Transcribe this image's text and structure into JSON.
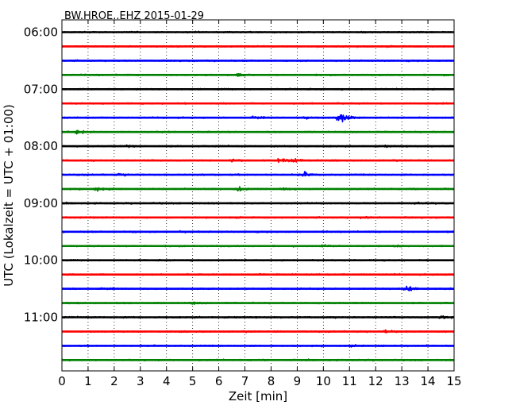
{
  "chart_data": {
    "type": "line",
    "title": "BW.HROE..EHZ 2015-01-29",
    "xlabel": "Zeit  [min]",
    "ylabel": "UTC (Lokalzeit = UTC + 01:00)",
    "xlim": [
      0,
      15
    ],
    "x_ticks": [
      "0",
      "1",
      "2",
      "3",
      "4",
      "5",
      "6",
      "7",
      "8",
      "9",
      "10",
      "11",
      "12",
      "13",
      "14",
      "15"
    ],
    "y_ticks": [
      "06:00",
      "07:00",
      "08:00",
      "09:00",
      "10:00",
      "11:00"
    ],
    "grid": "vertical dotted at each minute",
    "row_interval_minutes": 15,
    "trace_colors": [
      "#000000",
      "#ff0000",
      "#0000ff",
      "#008000"
    ],
    "rows": [
      {
        "start": "06:00",
        "events": []
      },
      {
        "start": "06:15",
        "events": []
      },
      {
        "start": "06:30",
        "events": []
      },
      {
        "start": "06:45",
        "events": [
          {
            "t": 6.7,
            "amp": 0.25
          }
        ]
      },
      {
        "start": "07:00",
        "events": []
      },
      {
        "start": "07:15",
        "events": []
      },
      {
        "start": "07:30",
        "events": [
          {
            "t": 7.3,
            "amp": 0.35
          },
          {
            "t": 9.3,
            "amp": 0.3
          },
          {
            "t": 10.6,
            "amp": 1.4
          }
        ]
      },
      {
        "start": "07:45",
        "events": [
          {
            "t": 0.6,
            "amp": 0.4
          }
        ]
      },
      {
        "start": "08:00",
        "events": [
          {
            "t": 2.5,
            "amp": 0.2
          },
          {
            "t": 12.3,
            "amp": 0.15
          }
        ]
      },
      {
        "start": "08:15",
        "events": [
          {
            "t": 6.5,
            "amp": 0.35
          },
          {
            "t": 8.3,
            "amp": 0.55
          },
          {
            "t": 8.9,
            "amp": 0.4
          }
        ]
      },
      {
        "start": "08:30",
        "events": [
          {
            "t": 2.2,
            "amp": 0.2
          },
          {
            "t": 9.2,
            "amp": 0.65
          }
        ]
      },
      {
        "start": "08:45",
        "events": [
          {
            "t": 1.3,
            "amp": 0.45
          },
          {
            "t": 6.7,
            "amp": 0.6
          },
          {
            "t": 8.5,
            "amp": 0.2
          }
        ]
      },
      {
        "start": "09:00",
        "events": [
          {
            "t": 13.5,
            "amp": 0.2
          }
        ]
      },
      {
        "start": "09:15",
        "events": [
          {
            "t": 11.5,
            "amp": 0.15
          }
        ]
      },
      {
        "start": "09:30",
        "events": [
          {
            "t": 2.5,
            "amp": 0.15
          },
          {
            "t": 4.5,
            "amp": 0.12
          }
        ]
      },
      {
        "start": "09:45",
        "events": [
          {
            "t": 10.0,
            "amp": 0.15
          },
          {
            "t": 12.8,
            "amp": 0.15
          }
        ]
      },
      {
        "start": "10:00",
        "events": []
      },
      {
        "start": "10:15",
        "events": [
          {
            "t": 7.6,
            "amp": 0.12
          }
        ]
      },
      {
        "start": "10:30",
        "events": [
          {
            "t": 1.5,
            "amp": 0.2
          },
          {
            "t": 13.2,
            "amp": 0.5
          }
        ]
      },
      {
        "start": "10:45",
        "events": [
          {
            "t": 5.0,
            "amp": 0.15
          }
        ]
      },
      {
        "start": "11:00",
        "events": [
          {
            "t": 14.5,
            "amp": 0.3
          }
        ]
      },
      {
        "start": "11:15",
        "events": [
          {
            "t": 12.4,
            "amp": 0.35
          }
        ]
      },
      {
        "start": "11:30",
        "events": [
          {
            "t": 11.0,
            "amp": 0.12
          }
        ]
      },
      {
        "start": "11:45",
        "events": []
      }
    ]
  }
}
